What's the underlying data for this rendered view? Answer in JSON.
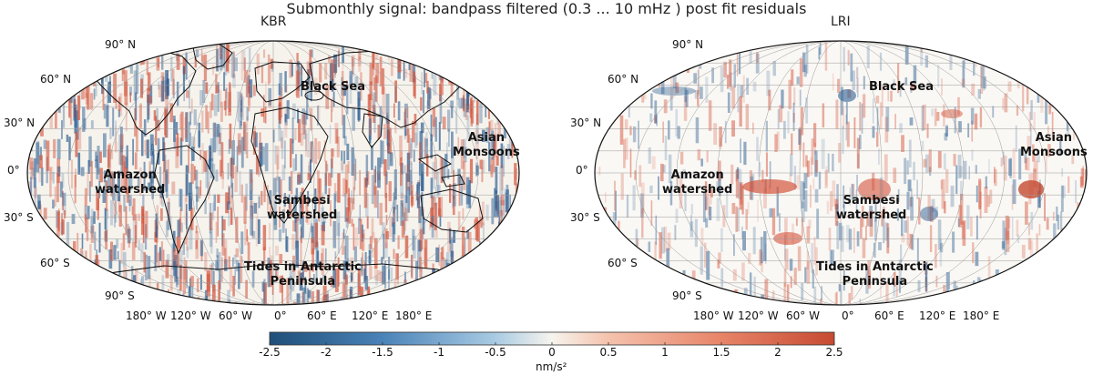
{
  "title": "Submonthly signal: bandpass filtered (0.3 ... 10 mHz ) post fit residuals",
  "colors": {
    "negative": "#2d5f93",
    "positive": "#d4553d",
    "neutral": "#f7f4ee",
    "coast": "#111111",
    "grid": "#9a9a9a"
  },
  "panels": [
    {
      "title": "KBR",
      "lat_labels": [
        "90° N",
        "60° N",
        "30° N",
        "0°",
        "30° S",
        "60° S",
        "90° S"
      ],
      "lon_labels": [
        "180° W",
        "120° W",
        "60° W",
        "0°",
        "60° E",
        "120° E",
        "180° E"
      ],
      "annotations": {
        "black_sea": "Black Sea",
        "asian_monsoons": [
          "Asian",
          "Monsoons"
        ],
        "amazon": [
          "Amazon",
          "watershed"
        ],
        "sambesi": [
          "Sambesi",
          "watershed"
        ],
        "tides": [
          "Tides in Antarctic",
          "Peninsula"
        ]
      },
      "noise_level": 1.0
    },
    {
      "title": "LRI",
      "lat_labels": [
        "90° N",
        "60° N",
        "30° N",
        "0°",
        "30° S",
        "60° S",
        "90° S"
      ],
      "lon_labels": [
        "180° W",
        "120° W",
        "60° W",
        "0°",
        "60° E",
        "120° E",
        "180° E"
      ],
      "annotations": {
        "black_sea": "Black Sea",
        "asian_monsoons": [
          "Asian",
          "Monsoons"
        ],
        "amazon": [
          "Amazon",
          "watershed"
        ],
        "sambesi": [
          "Sambesi",
          "watershed"
        ],
        "tides": [
          "Tides in Antarctic",
          "Peninsula"
        ]
      },
      "noise_level": 0.35
    }
  ],
  "colorbar": {
    "min": -2.5,
    "max": 2.5,
    "ticks": [
      "-2.5",
      "-2",
      "-1.5",
      "-1",
      "-0.5",
      "0",
      "0.5",
      "1",
      "1.5",
      "2",
      "2.5"
    ],
    "unit": "nm/s²"
  }
}
